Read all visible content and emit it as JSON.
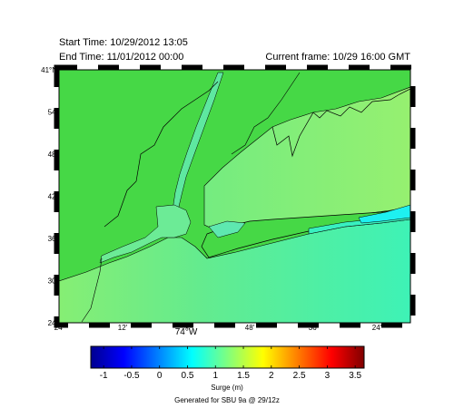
{
  "header": {
    "start_time": "Start Time: 10/29/2012 13:05",
    "end_time": "End Time:  11/01/2012 00:00",
    "current_frame": "Current frame: 10/29 16:00 GMT"
  },
  "map": {
    "lat_labels": [
      "41°N",
      "54'",
      "48'",
      "42'",
      "36'",
      "30'",
      "24'"
    ],
    "lon_labels": [
      "24'",
      "12'",
      "74°W",
      "48'",
      "36'",
      "24'"
    ]
  },
  "colorbar": {
    "lim": [
      -1.23,
      3.66
    ],
    "ticks": [
      -1,
      -0.5,
      0,
      0.5,
      1,
      1.5,
      2,
      2.5,
      3,
      3.5
    ],
    "label": "Surge (m)"
  },
  "footer": "Generated for SBU 9a @ 29/12z"
}
